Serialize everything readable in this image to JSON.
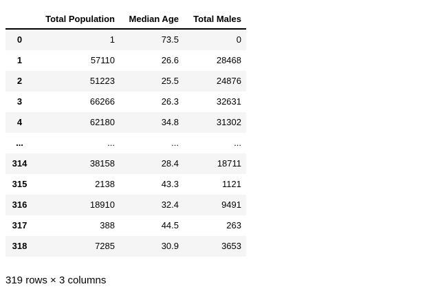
{
  "chart_data": {
    "type": "table",
    "index_header": "",
    "columns": [
      "Total Population",
      "Median Age",
      "Total Males"
    ],
    "rows": [
      {
        "index": "0",
        "values": [
          "1",
          "73.5",
          "0"
        ]
      },
      {
        "index": "1",
        "values": [
          "57110",
          "26.6",
          "28468"
        ]
      },
      {
        "index": "2",
        "values": [
          "51223",
          "25.5",
          "24876"
        ]
      },
      {
        "index": "3",
        "values": [
          "66266",
          "26.3",
          "32631"
        ]
      },
      {
        "index": "4",
        "values": [
          "62180",
          "34.8",
          "31302"
        ]
      },
      {
        "index": "...",
        "values": [
          "...",
          "...",
          "..."
        ]
      },
      {
        "index": "314",
        "values": [
          "38158",
          "28.4",
          "18711"
        ]
      },
      {
        "index": "315",
        "values": [
          "2138",
          "43.3",
          "1121"
        ]
      },
      {
        "index": "316",
        "values": [
          "18910",
          "32.4",
          "9491"
        ]
      },
      {
        "index": "317",
        "values": [
          "388",
          "44.5",
          "263"
        ]
      },
      {
        "index": "318",
        "values": [
          "7285",
          "30.9",
          "3653"
        ]
      }
    ],
    "footer": "319 rows × 3 columns",
    "layout": {
      "stripe_rows": "odd",
      "index_align": "center",
      "value_align": "right",
      "header_align": "right"
    }
  },
  "colors": {
    "background": "#ffffff",
    "row_stripe": "#f5f5f5",
    "header_border": "#000000",
    "text": "#000000"
  }
}
